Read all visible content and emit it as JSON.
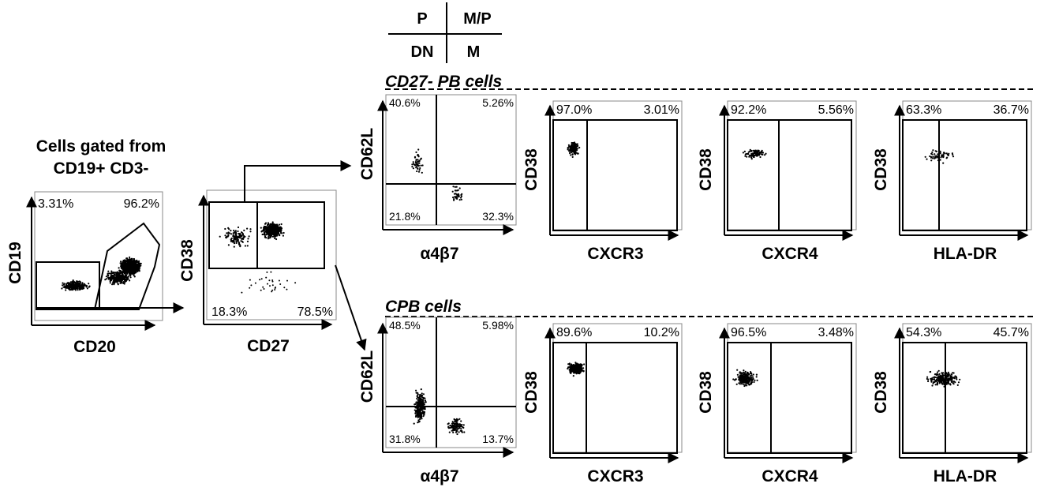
{
  "legend": {
    "top_left": "P",
    "top_right": "M/P",
    "bottom_left": "DN",
    "bottom_right": "M"
  },
  "gating": {
    "header_line1": "Cells gated from",
    "header_line2": "CD19+ CD3-",
    "plot1": {
      "x_label": "CD20",
      "y_label": "CD19",
      "left_pct": "3.31%",
      "right_pct": "96.2%"
    },
    "plot2": {
      "x_label": "CD27",
      "y_label": "CD38",
      "left_pct": "18.3%",
      "right_pct": "78.5%"
    }
  },
  "sections": [
    {
      "title": "CD27- PB cells",
      "quadrant": {
        "x_label": "α4β7",
        "y_label": "CD62L",
        "tl": "40.6%",
        "tr": "5.26%",
        "bl": "21.8%",
        "br": "32.3%"
      },
      "gates": [
        {
          "x_label": "CXCR3",
          "y_label": "CD38",
          "left": "97.0%",
          "right": "3.01%"
        },
        {
          "x_label": "CXCR4",
          "y_label": "CD38",
          "left": "92.2%",
          "right": "5.56%"
        },
        {
          "x_label": "HLA-DR",
          "y_label": "CD38",
          "left": "63.3%",
          "right": "36.7%"
        }
      ]
    },
    {
      "title": "CPB cells",
      "quadrant": {
        "x_label": "α4β7",
        "y_label": "CD62L",
        "tl": "48.5%",
        "tr": "5.98%",
        "bl": "31.8%",
        "br": "13.7%"
      },
      "gates": [
        {
          "x_label": "CXCR3",
          "y_label": "CD38",
          "left": "89.6%",
          "right": "10.2%"
        },
        {
          "x_label": "CXCR4",
          "y_label": "CD38",
          "left": "96.5%",
          "right": "3.48%"
        },
        {
          "x_label": "HLA-DR",
          "y_label": "CD38",
          "left": "54.3%",
          "right": "45.7%"
        }
      ]
    }
  ]
}
